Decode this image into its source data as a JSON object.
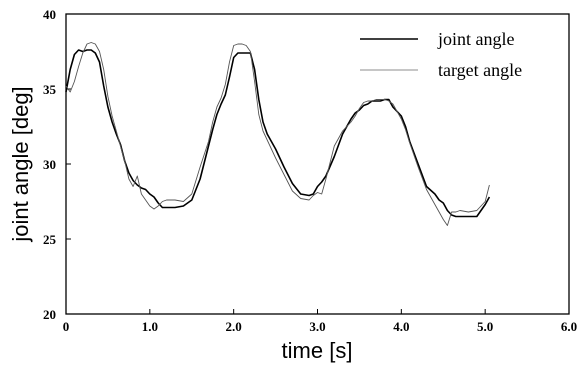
{
  "chart_data": {
    "type": "line",
    "title": "",
    "xlabel": "time [s]",
    "ylabel": "joint angle [deg]",
    "xlim": [
      0,
      6.0
    ],
    "ylim": [
      20,
      40
    ],
    "xticks": [
      "0",
      "1.0",
      "2.0",
      "3.0",
      "4.0",
      "5.0",
      "6.0"
    ],
    "yticks": [
      "20",
      "25",
      "30",
      "35",
      "40"
    ],
    "grid": false,
    "legend_position": "top-right",
    "series": [
      {
        "name": "joint angle",
        "color": "#000000",
        "style": "thick",
        "x": [
          0.0,
          0.05,
          0.1,
          0.15,
          0.2,
          0.25,
          0.3,
          0.35,
          0.4,
          0.45,
          0.5,
          0.55,
          0.6,
          0.65,
          0.7,
          0.75,
          0.8,
          0.85,
          0.9,
          0.95,
          1.0,
          1.05,
          1.1,
          1.15,
          1.2,
          1.3,
          1.4,
          1.5,
          1.6,
          1.7,
          1.75,
          1.8,
          1.85,
          1.9,
          1.95,
          2.0,
          2.05,
          2.1,
          2.15,
          2.2,
          2.25,
          2.3,
          2.35,
          2.4,
          2.5,
          2.6,
          2.7,
          2.8,
          2.9,
          2.95,
          3.0,
          3.05,
          3.1,
          3.2,
          3.3,
          3.4,
          3.45,
          3.5,
          3.55,
          3.6,
          3.65,
          3.7,
          3.75,
          3.8,
          3.85,
          3.9,
          3.95,
          4.0,
          4.05,
          4.1,
          4.2,
          4.3,
          4.4,
          4.45,
          4.5,
          4.55,
          4.6,
          4.65,
          4.7,
          4.8,
          4.9,
          5.0,
          5.05
        ],
        "y": [
          34.8,
          36.3,
          37.3,
          37.6,
          37.5,
          37.6,
          37.6,
          37.4,
          36.8,
          35.2,
          33.8,
          32.8,
          32.0,
          31.3,
          30.2,
          29.4,
          28.9,
          28.6,
          28.4,
          28.3,
          28.0,
          27.8,
          27.4,
          27.1,
          27.1,
          27.1,
          27.2,
          27.6,
          29.0,
          31.2,
          32.3,
          33.3,
          34.0,
          34.6,
          35.8,
          37.1,
          37.4,
          37.4,
          37.4,
          37.4,
          36.3,
          34.3,
          32.8,
          32.0,
          31.0,
          29.8,
          28.7,
          28.0,
          27.9,
          28.0,
          28.5,
          28.8,
          29.2,
          30.5,
          32.0,
          33.0,
          33.4,
          33.6,
          33.9,
          34.0,
          34.2,
          34.2,
          34.2,
          34.3,
          34.3,
          33.8,
          33.5,
          33.2,
          32.5,
          31.5,
          30.0,
          28.5,
          28.0,
          27.6,
          27.4,
          26.9,
          26.6,
          26.5,
          26.5,
          26.5,
          26.5,
          27.3,
          27.8
        ]
      },
      {
        "name": "target angle",
        "color": "#555555",
        "style": "thin",
        "x": [
          0.0,
          0.05,
          0.1,
          0.15,
          0.2,
          0.25,
          0.3,
          0.35,
          0.4,
          0.45,
          0.5,
          0.55,
          0.6,
          0.65,
          0.7,
          0.75,
          0.8,
          0.85,
          0.9,
          0.95,
          1.0,
          1.05,
          1.1,
          1.15,
          1.2,
          1.3,
          1.4,
          1.5,
          1.6,
          1.7,
          1.75,
          1.8,
          1.85,
          1.9,
          1.95,
          2.0,
          2.05,
          2.1,
          2.15,
          2.2,
          2.25,
          2.3,
          2.35,
          2.4,
          2.5,
          2.6,
          2.7,
          2.8,
          2.9,
          2.95,
          3.0,
          3.05,
          3.1,
          3.2,
          3.3,
          3.4,
          3.45,
          3.5,
          3.55,
          3.6,
          3.65,
          3.7,
          3.75,
          3.8,
          3.85,
          3.9,
          3.95,
          4.0,
          4.05,
          4.1,
          4.2,
          4.3,
          4.4,
          4.45,
          4.5,
          4.55,
          4.6,
          4.65,
          4.7,
          4.8,
          4.9,
          5.0,
          5.05
        ],
        "y": [
          35.2,
          34.8,
          35.5,
          36.5,
          37.4,
          38.0,
          38.1,
          38.0,
          37.5,
          36.3,
          34.5,
          33.2,
          32.2,
          31.2,
          30.2,
          29.0,
          28.5,
          29.2,
          28.0,
          27.6,
          27.2,
          27.0,
          27.2,
          27.5,
          27.6,
          27.6,
          27.5,
          28.0,
          29.8,
          31.5,
          32.8,
          33.8,
          34.4,
          35.3,
          36.8,
          37.9,
          38.0,
          38.0,
          37.9,
          37.5,
          35.5,
          33.3,
          32.2,
          31.6,
          30.4,
          29.3,
          28.2,
          27.7,
          27.6,
          27.9,
          28.1,
          28.0,
          29.0,
          31.2,
          32.2,
          32.8,
          33.2,
          33.7,
          34.1,
          34.2,
          34.2,
          34.3,
          34.3,
          34.3,
          34.2,
          34.0,
          33.5,
          33.0,
          32.3,
          31.4,
          29.8,
          28.3,
          27.3,
          26.8,
          26.3,
          25.9,
          26.8,
          26.8,
          26.9,
          26.8,
          26.9,
          27.5,
          28.6
        ]
      }
    ]
  }
}
